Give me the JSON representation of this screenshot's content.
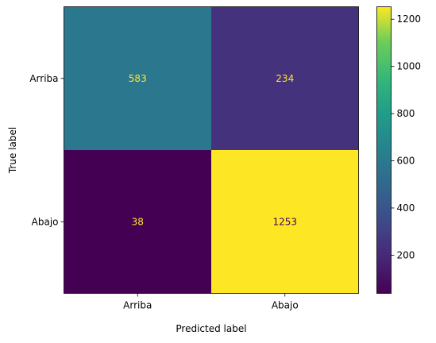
{
  "chart_data": {
    "type": "heatmap",
    "title": "",
    "xlabel": "Predicted label",
    "ylabel": "True label",
    "x_categories": [
      "Arriba",
      "Abajo"
    ],
    "y_categories": [
      "Arriba",
      "Abajo"
    ],
    "values": [
      [
        583,
        234
      ],
      [
        38,
        1253
      ]
    ],
    "colormap": "viridis",
    "colorbar": {
      "min": 38,
      "max": 1253,
      "ticks": [
        200,
        400,
        600,
        800,
        1000,
        1200
      ]
    },
    "grid": false
  }
}
